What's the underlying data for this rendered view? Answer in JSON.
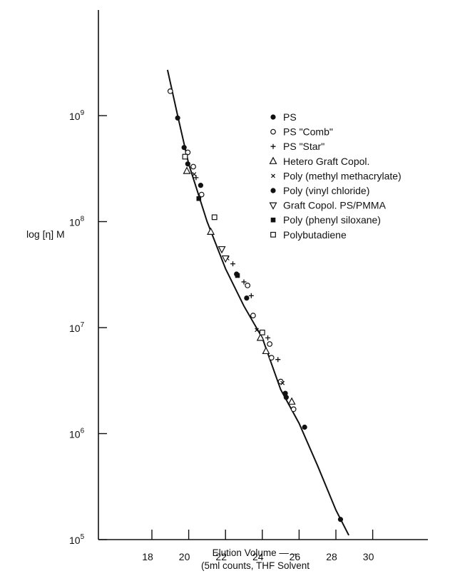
{
  "chart_data": {
    "type": "scatter",
    "title": "",
    "ylabel": "log [η] M",
    "xlabel_line1": "Elution Volume —→",
    "xlabel_line2": "(5ml counts, THF Solvent",
    "x_scale": "linear",
    "y_scale": "log",
    "xlim": [
      16.2,
      32.0
    ],
    "ylim": [
      100000,
      4000000000
    ],
    "x_ticks": [
      18,
      20,
      22,
      24,
      26,
      28,
      30
    ],
    "x_tick_labels": [
      "18",
      "20",
      "22",
      "24",
      "26",
      "28",
      "30"
    ],
    "y_ticks": [
      {
        "value": 100000,
        "base": "10",
        "exp": "5"
      },
      {
        "value": 1000000,
        "base": "10",
        "exp": "6"
      },
      {
        "value": 10000000,
        "base": "10",
        "exp": "7"
      },
      {
        "value": 100000000,
        "base": "10",
        "exp": "8"
      },
      {
        "value": 1000000000,
        "base": "10",
        "exp": "9"
      }
    ],
    "grid": false,
    "legend_position": "right",
    "fit_line": [
      [
        18.85,
        2700000000
      ],
      [
        19.4,
        1000000000
      ],
      [
        20.0,
        350000000
      ],
      [
        21.0,
        100000000
      ],
      [
        22.0,
        36000000
      ],
      [
        23.0,
        16000000
      ],
      [
        24.0,
        8000000
      ],
      [
        25.0,
        2600000
      ],
      [
        26.0,
        1250000
      ],
      [
        27.0,
        500000
      ],
      [
        28.0,
        190000
      ],
      [
        28.7,
        110000
      ]
    ],
    "series": [
      {
        "name": "PS",
        "marker": "filled-circle",
        "points": [
          [
            19.4,
            950000000
          ],
          [
            19.75,
            500000000
          ],
          [
            19.95,
            350000000
          ],
          [
            22.6,
            32000000
          ],
          [
            23.15,
            19000000
          ],
          [
            25.3,
            2200000
          ],
          [
            26.3,
            1150000
          ],
          [
            28.25,
            155000
          ]
        ]
      },
      {
        "name": "PS \"Comb\"",
        "marker": "open-circle",
        "points": [
          [
            19.0,
            1700000000
          ],
          [
            19.95,
            450000000
          ],
          [
            20.25,
            330000000
          ],
          [
            20.7,
            180000000
          ],
          [
            23.2,
            25000000
          ],
          [
            23.5,
            13000000
          ],
          [
            24.4,
            7000000
          ],
          [
            24.5,
            5200000
          ],
          [
            25.0,
            3100000
          ],
          [
            25.7,
            1700000
          ]
        ]
      },
      {
        "name": "PS \"Star\"",
        "marker": "plus",
        "points": [
          [
            20.4,
            260000000
          ],
          [
            22.4,
            40000000
          ],
          [
            23.0,
            27000000
          ],
          [
            23.4,
            20000000
          ],
          [
            24.3,
            8000000
          ],
          [
            24.85,
            5000000
          ]
        ]
      },
      {
        "name": "Hetero Graft Copol.",
        "marker": "open-triangle-up",
        "points": [
          [
            19.9,
            300000000
          ],
          [
            21.2,
            80000000
          ],
          [
            23.9,
            8000000
          ],
          [
            24.2,
            6000000
          ],
          [
            25.6,
            2000000
          ]
        ]
      },
      {
        "name": "Poly (methyl methacrylate)",
        "marker": "x-small",
        "points": [
          [
            20.3,
            280000000
          ],
          [
            22.1,
            45000000
          ],
          [
            23.7,
            9500000
          ],
          [
            25.1,
            3000000
          ]
        ]
      },
      {
        "name": "Poly (vinyl chloride)",
        "marker": "filled-circle",
        "points": [
          [
            20.65,
            220000000
          ],
          [
            25.25,
            2400000
          ]
        ]
      },
      {
        "name": "Graft Copol. PS/PMMA",
        "marker": "open-triangle-down",
        "points": [
          [
            21.8,
            55000000
          ],
          [
            22.0,
            45000000
          ]
        ]
      },
      {
        "name": "Poly (phenyl siloxane)",
        "marker": "filled-square",
        "points": [
          [
            20.55,
            165000000
          ],
          [
            22.65,
            31000000
          ]
        ]
      },
      {
        "name": "Polybutadiene",
        "marker": "open-square",
        "points": [
          [
            19.8,
            410000000
          ],
          [
            21.4,
            110000000
          ],
          [
            24.0,
            9000000
          ]
        ]
      }
    ]
  }
}
